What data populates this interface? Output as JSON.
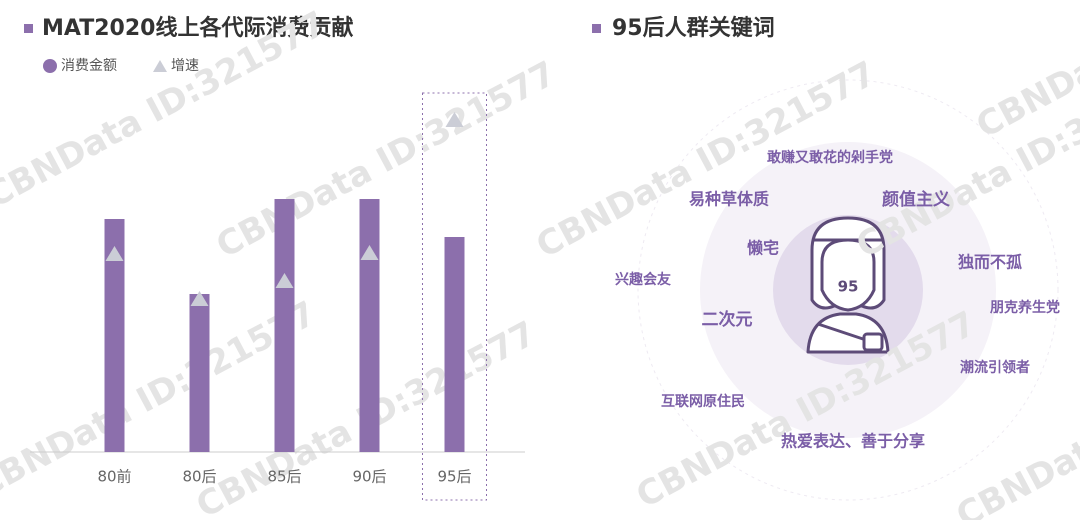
{
  "watermark": "CBNData ID:321577",
  "chart_data": {
    "type": "bar",
    "title": "MAT2020线上各代际消费贡献",
    "categories": [
      "80前",
      "80后",
      "85后",
      "90后",
      "95后"
    ],
    "series": [
      {
        "name": "消费金额",
        "color": "#8c6fac",
        "values": [
          233,
          158,
          253,
          253,
          215
        ]
      },
      {
        "name": "增速",
        "color": "#cbcdd6",
        "marker": "triangle",
        "values": [
          198,
          153,
          171,
          199,
          332
        ]
      }
    ],
    "ylim": [
      0,
      360
    ],
    "highlight": 4
  },
  "diagram": {
    "title": "95后人群关键词",
    "badge": "95",
    "keywords": [
      "敢赚又敢花的剁手党",
      "易种草体质",
      "颜值主义",
      "懒宅",
      "独而不孤",
      "兴趣会友",
      "朋克养生党",
      "二次元",
      "潮流引领者",
      "互联网原住民",
      "热爱表达、善于分享"
    ]
  }
}
